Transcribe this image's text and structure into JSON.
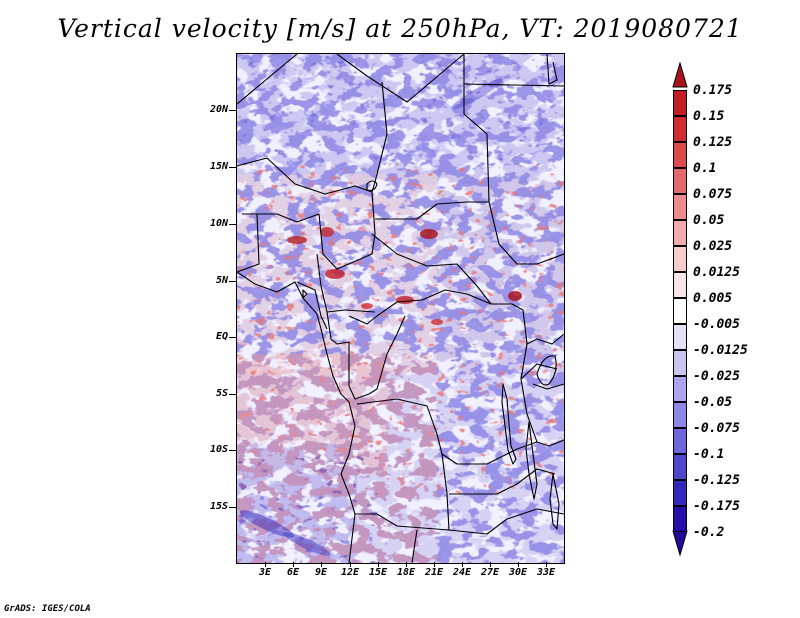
{
  "title": "Vertical velocity [m/s] at 250hPa, VT: 2019080721",
  "credit": "GrADS: IGES/COLA",
  "map": {
    "region": "Central Africa",
    "y_ticks": [
      "20N",
      "15N",
      "10N",
      "5N",
      "EQ",
      "5S",
      "10S",
      "15S"
    ],
    "x_ticks": [
      "3E",
      "6E",
      "9E",
      "12E",
      "15E",
      "18E",
      "21E",
      "24E",
      "27E",
      "30E",
      "33E"
    ]
  },
  "colorbar": {
    "levels": [
      {
        "label": "0.175",
        "color": "#a8151e"
      },
      {
        "label": "0.15",
        "color": "#c01d27"
      },
      {
        "label": "0.125",
        "color": "#d02c33"
      },
      {
        "label": "0.1",
        "color": "#dc4a4e"
      },
      {
        "label": "0.075",
        "color": "#e46b6d"
      },
      {
        "label": "0.05",
        "color": "#ec8c8c"
      },
      {
        "label": "0.025",
        "color": "#f3acab"
      },
      {
        "label": "0.0125",
        "color": "#f8cccb"
      },
      {
        "label": "0.005",
        "color": "#fce6e5"
      },
      {
        "label": "-0.005",
        "color": "#ffffff"
      },
      {
        "label": "-0.0125",
        "color": "#e4e2f8"
      },
      {
        "label": "-0.025",
        "color": "#c8c4f2"
      },
      {
        "label": "-0.05",
        "color": "#aaa5ec"
      },
      {
        "label": "-0.075",
        "color": "#8c86e4"
      },
      {
        "label": "-0.1",
        "color": "#6c66da"
      },
      {
        "label": "-0.125",
        "color": "#4f48cd"
      },
      {
        "label": "-0.175",
        "color": "#3529bc"
      },
      {
        "label": "-0.2",
        "color": "#2410a8"
      }
    ],
    "bottom_color": "#1f0a9c"
  }
}
